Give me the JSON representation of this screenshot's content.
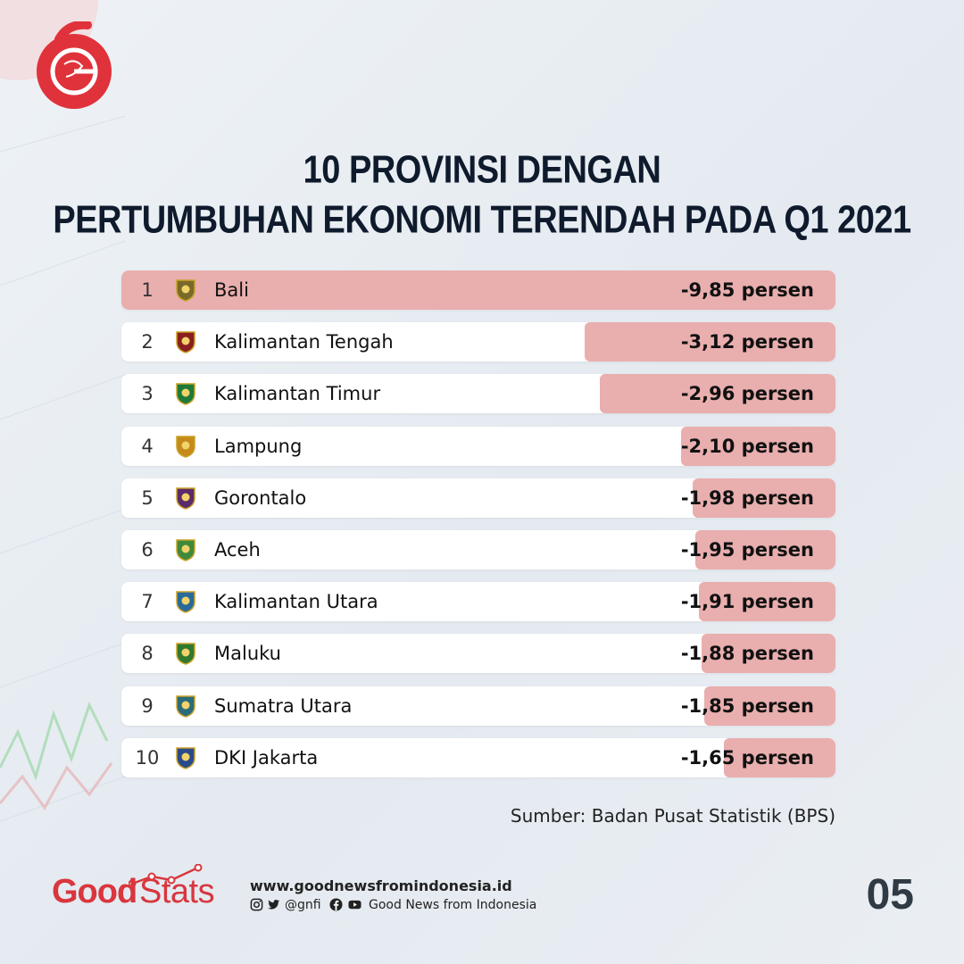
{
  "header": {
    "title_line1": "10 PROVINSI DENGAN",
    "title_line2": "PERTUMBUHAN EKONOMI TERENDAH PADA Q1 2021"
  },
  "chart_data": {
    "type": "bar",
    "orientation": "horizontal",
    "title": "10 PROVINSI DENGAN PERTUMBUHAN EKONOMI TERENDAH PADA Q1 2021",
    "unit": "persen",
    "categories": [
      "Bali",
      "Kalimantan Tengah",
      "Kalimantan Timur",
      "Lampung",
      "Gorontalo",
      "Aceh",
      "Kalimantan Utara",
      "Maluku",
      "Sumatra Utara",
      "DKI Jakarta"
    ],
    "values": [
      -9.85,
      -3.12,
      -2.96,
      -2.1,
      -1.98,
      -1.95,
      -1.91,
      -1.88,
      -1.85,
      -1.65
    ],
    "rows": [
      {
        "rank": "1",
        "name": "Bali",
        "value": -9.85,
        "label": "-9,85 persen",
        "emblem": "bali-emblem-icon"
      },
      {
        "rank": "2",
        "name": "Kalimantan Tengah",
        "value": -3.12,
        "label": "-3,12 persen",
        "emblem": "kalimantan-tengah-emblem-icon"
      },
      {
        "rank": "3",
        "name": "Kalimantan Timur",
        "value": -2.96,
        "label": "-2,96 persen",
        "emblem": "kalimantan-timur-emblem-icon"
      },
      {
        "rank": "4",
        "name": "Lampung",
        "value": -2.1,
        "label": "-2,10 persen",
        "emblem": "lampung-emblem-icon"
      },
      {
        "rank": "5",
        "name": "Gorontalo",
        "value": -1.98,
        "label": "-1,98 persen",
        "emblem": "gorontalo-emblem-icon"
      },
      {
        "rank": "6",
        "name": "Aceh",
        "value": -1.95,
        "label": "-1,95 persen",
        "emblem": "aceh-emblem-icon"
      },
      {
        "rank": "7",
        "name": "Kalimantan Utara",
        "value": -1.91,
        "label": "-1,91 persen",
        "emblem": "kalimantan-utara-emblem-icon"
      },
      {
        "rank": "8",
        "name": "Maluku",
        "value": -1.88,
        "label": "-1,88 persen",
        "emblem": "maluku-emblem-icon"
      },
      {
        "rank": "9",
        "name": "Sumatra Utara",
        "value": -1.85,
        "label": "-1,85 persen",
        "emblem": "sumatra-utara-emblem-icon"
      },
      {
        "rank": "10",
        "name": "DKI Jakarta",
        "value": -1.65,
        "label": "-1,65 persen",
        "emblem": "dki-jakarta-emblem-icon"
      }
    ],
    "xlim": [
      -9.85,
      0
    ]
  },
  "source": "Sumber: Badan Pusat Statistik (BPS)",
  "footer": {
    "brand_good": "Good",
    "brand_stats": "Stats",
    "website": "www.goodnewsfromindonesia.id",
    "handle": "@gnfi",
    "page_name": "Good News from Indonesia",
    "page_number": "05"
  },
  "colors": {
    "bar": "#e9aeae",
    "brand_red": "#d9363e",
    "title": "#0f1b2d"
  }
}
